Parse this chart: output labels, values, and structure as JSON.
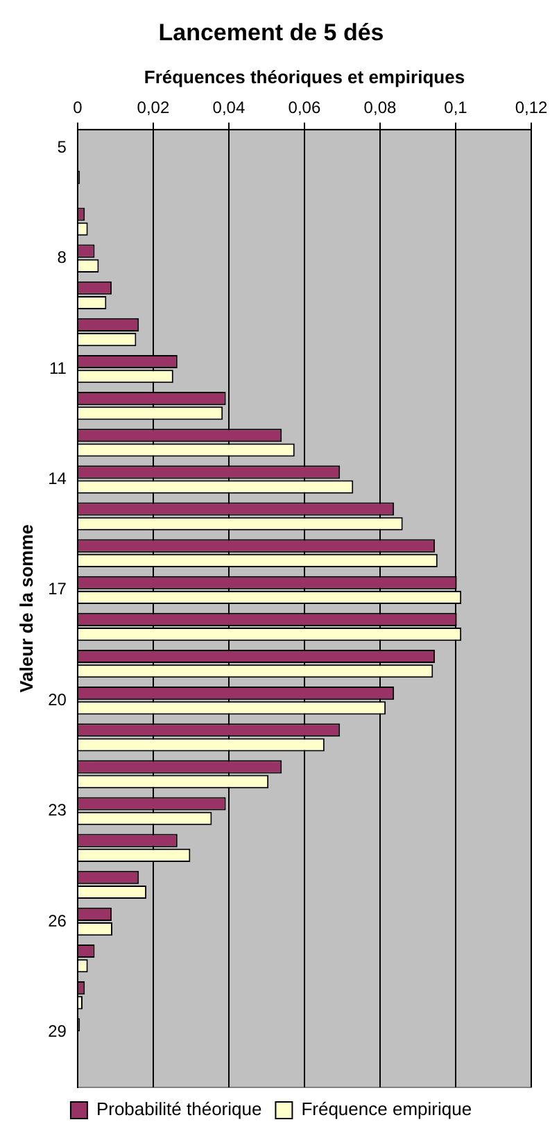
{
  "chart_data": {
    "type": "bar",
    "orientation": "horizontal",
    "title": "Lancement de 5 dés",
    "xlabel": "Fréquences théoriques et empiriques",
    "ylabel": "Valeur de la somme",
    "categories": [
      "5",
      null,
      null,
      "8",
      null,
      null,
      "11",
      null,
      null,
      "14",
      null,
      null,
      "17",
      null,
      null,
      "20",
      null,
      null,
      "23",
      null,
      null,
      "26",
      null,
      null,
      "29",
      null
    ],
    "series": [
      {
        "name": "Probabilité théorique",
        "color": "#993366",
        "values": [
          null,
          0.0006,
          0.0019,
          0.0045,
          0.009,
          0.0162,
          0.0264,
          0.0392,
          0.054,
          0.0694,
          0.0837,
          0.0945,
          0.1003,
          0.1003,
          0.0945,
          0.0837,
          0.0694,
          0.054,
          0.0392,
          0.0264,
          0.0162,
          0.009,
          0.0045,
          0.0019,
          0.0006,
          null
        ]
      },
      {
        "name": "Fréquence empirique",
        "color": "#ffffcc",
        "values": [
          0,
          0.0002,
          0.0027,
          0.0056,
          0.0076,
          0.0155,
          0.0253,
          0.0384,
          0.0574,
          0.0729,
          0.086,
          0.0952,
          0.1015,
          0.1015,
          0.094,
          0.0815,
          0.0653,
          0.0505,
          0.0355,
          0.0298,
          0.0182,
          0.0092,
          0.0027,
          0.0013,
          null,
          0
        ]
      }
    ],
    "xlim": [
      0,
      0.12
    ],
    "xticks": [
      {
        "value": 0,
        "label": "0"
      },
      {
        "value": 0.02,
        "label": "0,02"
      },
      {
        "value": 0.04,
        "label": "0,04"
      },
      {
        "value": 0.06,
        "label": "0,06"
      },
      {
        "value": 0.08,
        "label": "0,08"
      },
      {
        "value": 0.1,
        "label": "0,1"
      },
      {
        "value": 0.12,
        "label": "0,12"
      }
    ],
    "grid": "x",
    "legend": "bottom"
  }
}
